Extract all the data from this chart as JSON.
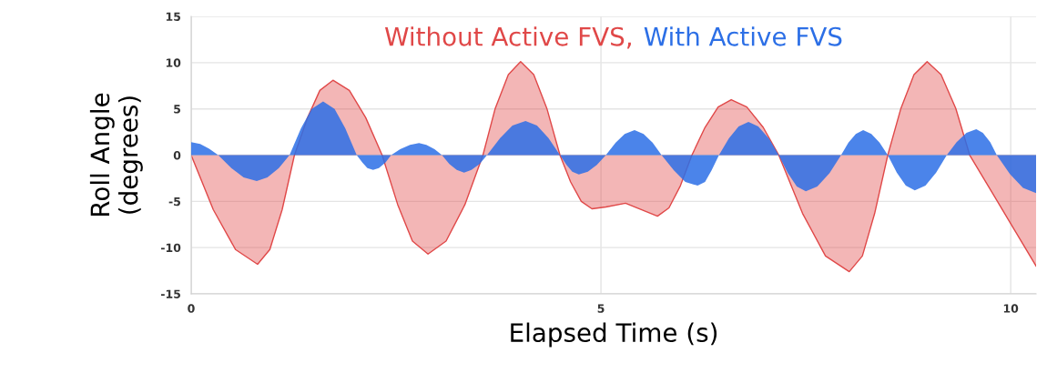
{
  "chart_data": {
    "type": "area",
    "xlabel": "Elapsed Time (s)",
    "ylabel": "Roll Angle\n(degrees)",
    "xlim": [
      0,
      10.31
    ],
    "ylim": [
      -15,
      15
    ],
    "xticks": [
      0,
      5,
      10
    ],
    "yticks": [
      -15,
      -10,
      -5,
      0,
      5,
      10,
      15
    ],
    "grid": true,
    "legend": "top",
    "series": [
      {
        "name": "Without Active FVS,",
        "color": "#e04848",
        "x": [
          0,
          0.27,
          0.54,
          0.81,
          0.96,
          1.11,
          1.26,
          1.42,
          1.57,
          1.73,
          1.93,
          2.13,
          2.33,
          2.52,
          2.7,
          2.89,
          3.11,
          3.34,
          3.56,
          3.71,
          3.87,
          4.02,
          4.18,
          4.34,
          4.5,
          4.63,
          4.76,
          4.89,
          5.06,
          5.3,
          5.69,
          5.83,
          5.97,
          6.11,
          6.27,
          6.43,
          6.59,
          6.78,
          6.98,
          7.17,
          7.46,
          7.74,
          8.03,
          8.19,
          8.34,
          8.5,
          8.66,
          8.82,
          8.98,
          9.15,
          9.33,
          9.5,
          9.77,
          10.04,
          10.31
        ],
        "values": [
          0,
          -5.9,
          -10.2,
          -11.8,
          -10.2,
          -5.9,
          0,
          4.05,
          7.0,
          8.1,
          7.0,
          4.05,
          0,
          -5.35,
          -9.3,
          -10.7,
          -9.3,
          -5.35,
          0,
          5.05,
          8.7,
          10.1,
          8.7,
          5.05,
          0,
          -2.9,
          -5.0,
          -5.8,
          -5.6,
          -5.2,
          -6.6,
          -5.7,
          -3.3,
          0,
          3.0,
          5.2,
          6.0,
          5.2,
          3.0,
          0,
          -6.3,
          -10.9,
          -12.6,
          -10.9,
          -6.3,
          0,
          5.05,
          8.7,
          10.1,
          8.7,
          5.05,
          0,
          -4.0,
          -8.0,
          -12.0
        ]
      },
      {
        "name": "With Active FVS",
        "color": "#2c6fe6",
        "x": [
          0,
          0.11,
          0.22,
          0.33,
          0.49,
          0.64,
          0.8,
          0.93,
          1.07,
          1.2,
          1.34,
          1.47,
          1.61,
          1.75,
          1.88,
          2.02,
          2.09,
          2.15,
          2.22,
          2.29,
          2.37,
          2.44,
          2.55,
          2.67,
          2.78,
          2.87,
          2.97,
          3.06,
          3.15,
          3.24,
          3.33,
          3.42,
          3.52,
          3.61,
          3.77,
          3.92,
          4.08,
          4.22,
          4.36,
          4.5,
          4.58,
          4.65,
          4.73,
          4.84,
          4.95,
          5.06,
          5.18,
          5.29,
          5.41,
          5.52,
          5.63,
          5.74,
          5.89,
          6.03,
          6.18,
          6.27,
          6.35,
          6.44,
          6.56,
          6.68,
          6.8,
          6.92,
          7.05,
          7.17,
          7.28,
          7.39,
          7.5,
          7.64,
          7.79,
          7.93,
          8.02,
          8.11,
          8.2,
          8.3,
          8.4,
          8.5,
          8.61,
          8.72,
          8.83,
          8.96,
          9.09,
          9.22,
          9.34,
          9.46,
          9.58,
          9.66,
          9.75,
          9.83,
          9.99,
          10.15,
          10.31
        ],
        "values": [
          1.4,
          1.2,
          0.7,
          0,
          -1.4,
          -2.4,
          -2.8,
          -2.4,
          -1.4,
          0,
          2.9,
          5.0,
          5.8,
          5.0,
          2.9,
          0,
          -0.8,
          -1.4,
          -1.6,
          -1.4,
          -0.8,
          0,
          0.65,
          1.1,
          1.3,
          1.1,
          0.65,
          0,
          -0.95,
          -1.6,
          -1.9,
          -1.6,
          -0.95,
          0,
          1.85,
          3.2,
          3.7,
          3.2,
          1.85,
          0,
          -1.05,
          -1.8,
          -2.1,
          -1.8,
          -1.05,
          0,
          1.35,
          2.3,
          2.7,
          2.3,
          1.35,
          0,
          -1.65,
          -2.9,
          -3.3,
          -2.9,
          -1.65,
          0,
          1.8,
          3.1,
          3.6,
          3.1,
          1.8,
          0,
          -1.95,
          -3.4,
          -3.9,
          -3.4,
          -1.95,
          0,
          1.35,
          2.3,
          2.7,
          2.3,
          1.35,
          0,
          -1.9,
          -3.3,
          -3.8,
          -3.3,
          -1.9,
          0,
          1.4,
          2.4,
          2.8,
          2.4,
          1.4,
          0,
          -2.05,
          -3.55,
          -4.1
        ]
      }
    ]
  }
}
